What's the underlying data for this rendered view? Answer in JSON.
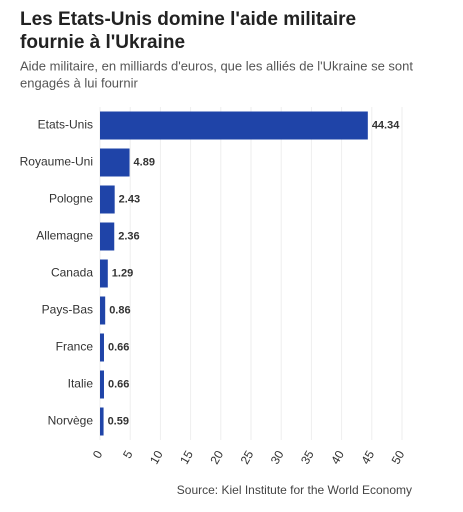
{
  "chart_data": {
    "type": "barh",
    "title": [
      "Les Etats-Unis domine l'aide militaire",
      "fournie à l'Ukraine"
    ],
    "subtitle": [
      "Aide militaire, en milliards d'euros, que les alliés de l'Ukraine se sont",
      "engagés à lui fournir"
    ],
    "categories": [
      "Etats-Unis",
      "Royaume-Uni",
      "Pologne",
      "Allemagne",
      "Canada",
      "Pays-Bas",
      "France",
      "Italie",
      "Norvège"
    ],
    "values": [
      44.34,
      4.89,
      2.43,
      2.36,
      1.29,
      0.86,
      0.66,
      0.66,
      0.59
    ],
    "color": "#1f44a8",
    "xlim": [
      0,
      50
    ],
    "xticks": [
      0,
      5,
      10,
      15,
      20,
      25,
      30,
      35,
      40,
      45,
      50
    ],
    "grid": true,
    "source": "Source: Kiel Institute for the World Economy"
  }
}
